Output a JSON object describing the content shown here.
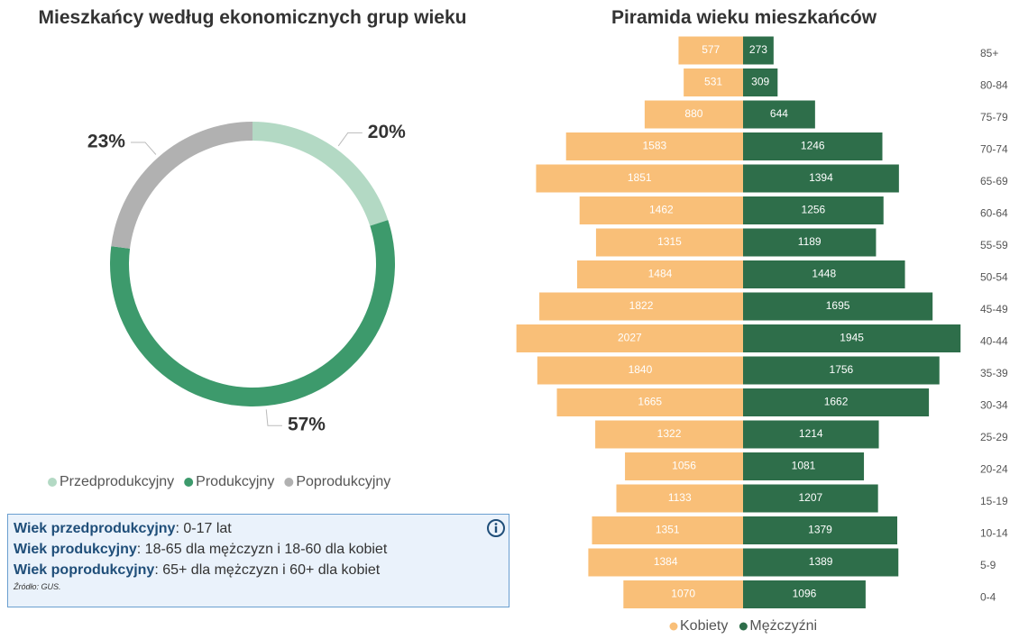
{
  "chart_data": [
    {
      "type": "donut",
      "title": "Mieszkańcy według ekonomicznych grup wieku",
      "categories": [
        "Przedprodukcyjny",
        "Produkcyjny",
        "Poprodukcyjny"
      ],
      "values": [
        20,
        57,
        23
      ],
      "value_labels": [
        "20%",
        "57%",
        "23%"
      ],
      "colors": [
        "#b3d9c4",
        "#3d9a6c",
        "#b1b1b1"
      ]
    },
    {
      "type": "pyramid",
      "title": "Piramida wieku mieszkańców",
      "categories": [
        "85+",
        "80-84",
        "75-79",
        "70-74",
        "65-69",
        "60-64",
        "55-59",
        "50-54",
        "45-49",
        "40-44",
        "35-39",
        "30-34",
        "25-29",
        "20-24",
        "15-19",
        "10-14",
        "5-9",
        "0-4"
      ],
      "series": [
        {
          "name": "Kobiety",
          "color": "#f9bf78",
          "values": [
            577,
            531,
            880,
            1583,
            1851,
            1462,
            1315,
            1484,
            1822,
            2027,
            1840,
            1665,
            1322,
            1056,
            1133,
            1351,
            1384,
            1070
          ]
        },
        {
          "name": "Mężczyźni",
          "color": "#2e6e4a",
          "values": [
            273,
            309,
            644,
            1246,
            1394,
            1256,
            1189,
            1448,
            1695,
            1945,
            1756,
            1662,
            1214,
            1081,
            1207,
            1379,
            1389,
            1096
          ]
        }
      ]
    }
  ],
  "info": {
    "lines": [
      {
        "term": "Wiek przedprodukcyjny",
        "text": ": 0-17 lat"
      },
      {
        "term": "Wiek produkcyjny",
        "text": ": 18-65 dla mężczyzn i 18-60 dla kobiet"
      },
      {
        "term": "Wiek poprodukcyjny",
        "text": ": 65+ dla mężczyzn i 60+ dla kobiet"
      }
    ],
    "source": "Źródło: GUS."
  }
}
